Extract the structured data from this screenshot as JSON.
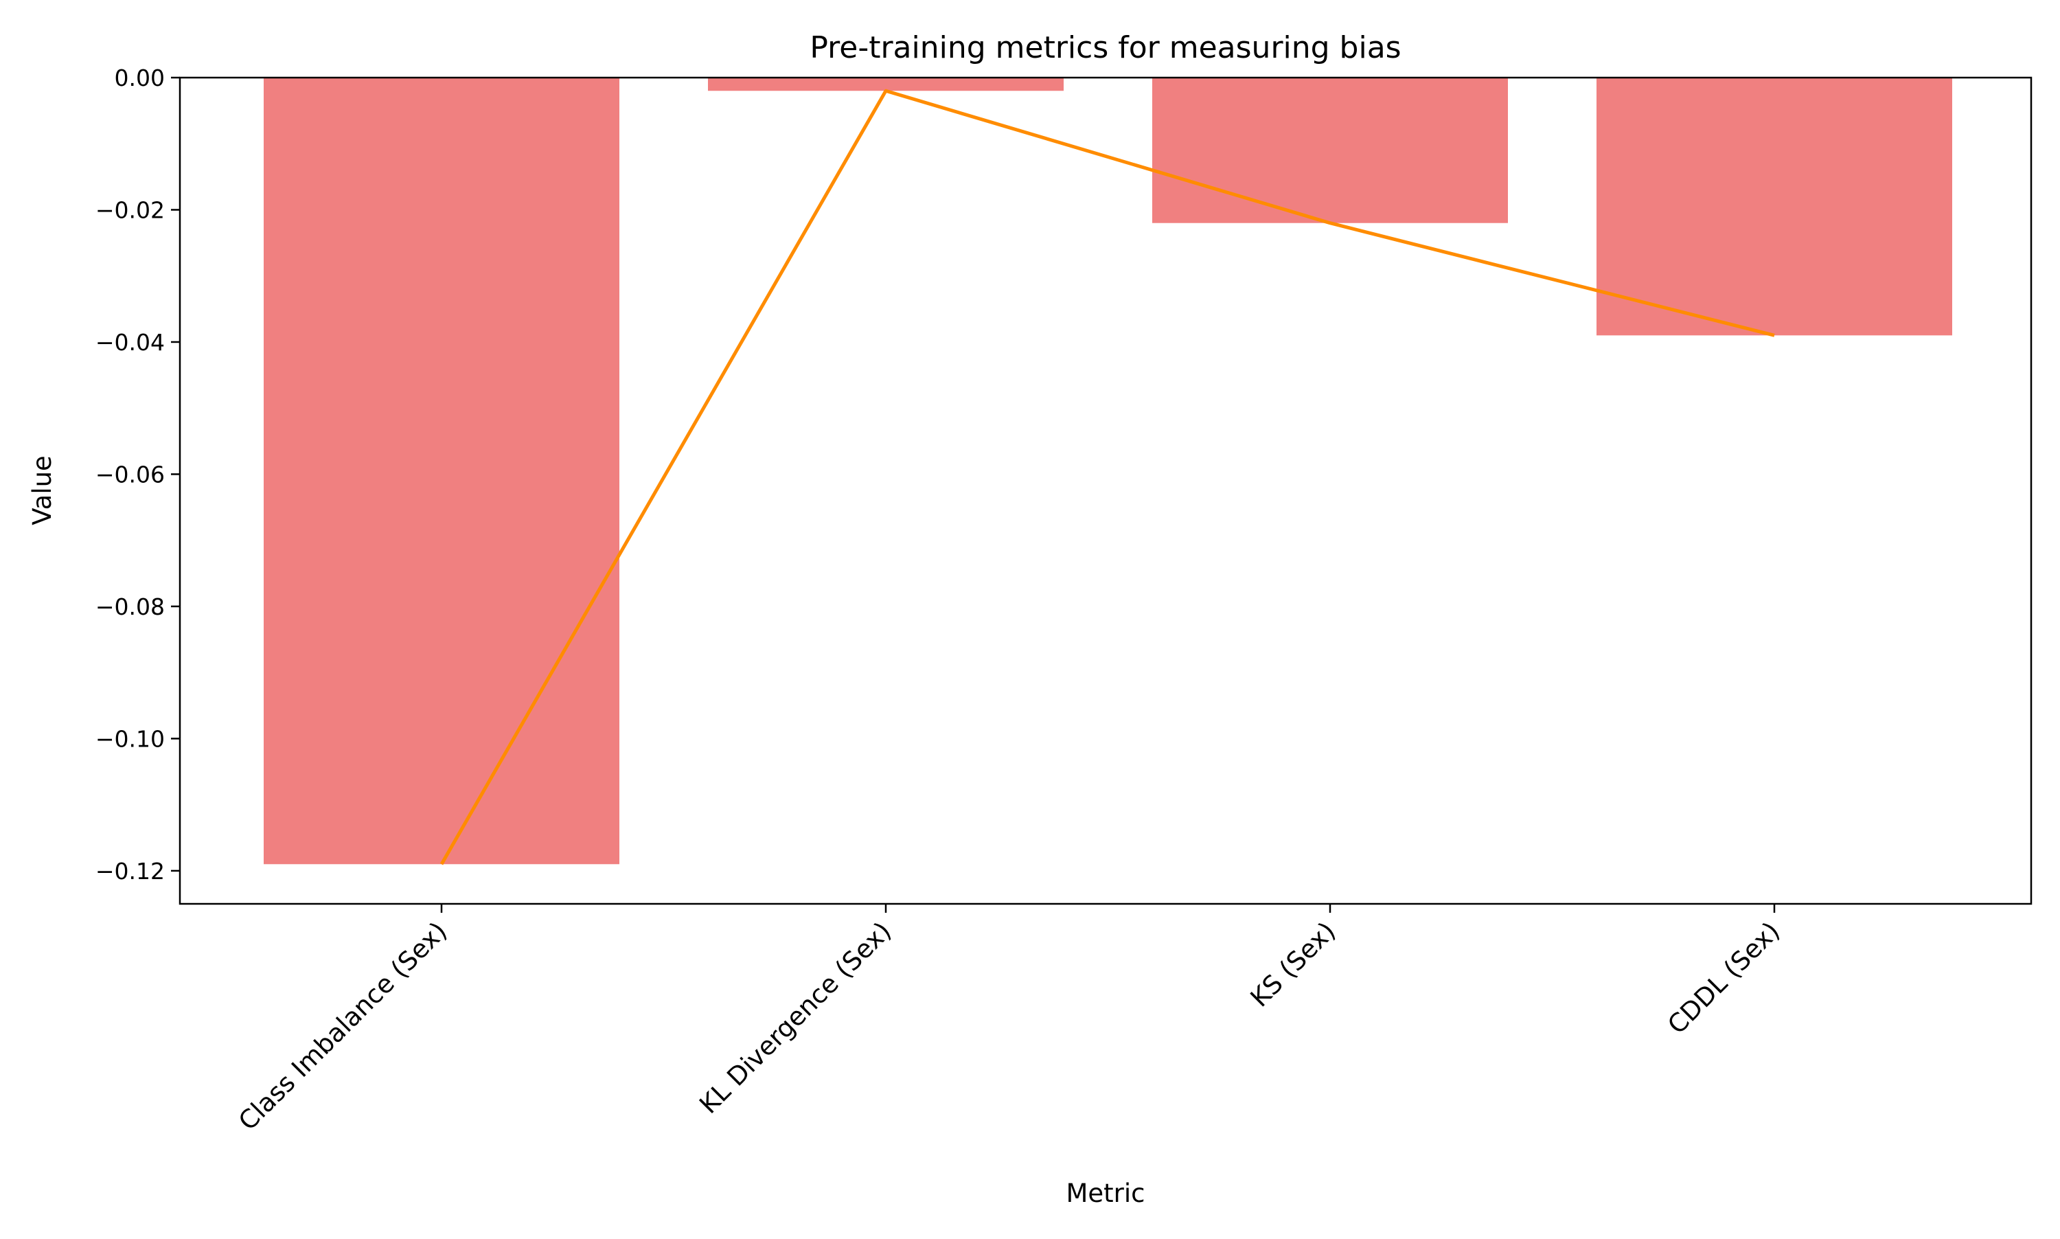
{
  "chart_data": {
    "type": "bar",
    "title": "Pre-training metrics for measuring bias",
    "xlabel": "Metric",
    "ylabel": "Value",
    "categories": [
      "Class Imbalance (Sex)",
      "KL Divergence (Sex)",
      "KS (Sex)",
      "CDDL (Sex)"
    ],
    "values": [
      -0.119,
      -0.002,
      -0.022,
      -0.039
    ],
    "line_values": [
      -0.119,
      -0.002,
      -0.022,
      -0.039
    ],
    "ylim": [
      -0.125,
      0.0
    ],
    "yticks": [
      0.0,
      -0.02,
      -0.04,
      -0.06,
      -0.08,
      -0.1,
      -0.12
    ],
    "ytick_labels": [
      "0.00",
      "−0.02",
      "−0.04",
      "−0.06",
      "−0.08",
      "−0.10",
      "−0.12"
    ],
    "grid": false,
    "bar_color": "#f08080",
    "line_color": "#ff8c00"
  }
}
